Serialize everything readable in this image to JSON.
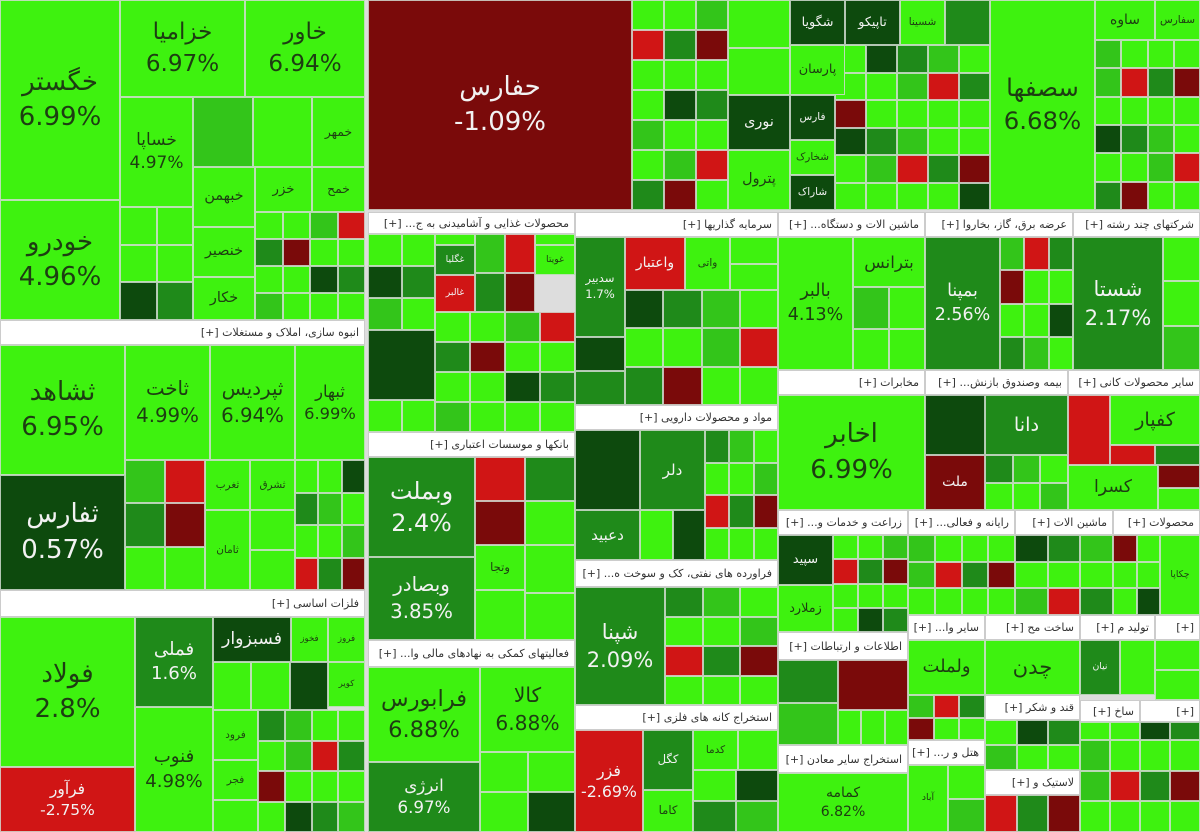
{
  "sectors": [
    {
      "tiles": [
        {
          "label": "خگستر",
          "change": "6.99%"
        },
        {
          "label": "خودرو",
          "change": "4.96%"
        },
        {
          "label": "خزامیا",
          "change": "6.97%"
        },
        {
          "label": "خاور",
          "change": "6.94%"
        },
        {
          "label": "خساپا",
          "change": "4.97%"
        },
        {
          "label": "خمهر"
        },
        {
          "label": "خبهمن"
        },
        {
          "label": "خزر"
        },
        {
          "label": "خمح"
        },
        {
          "label": "خنصیر"
        },
        {
          "label": "خکار"
        }
      ]
    },
    {
      "title": "انبوه سازی، املاک و مستغلات [+]",
      "tiles": [
        {
          "label": "ثشاهد",
          "change": "6.95%"
        },
        {
          "label": "ثفارس",
          "change": "0.57%"
        },
        {
          "label": "ثاخت",
          "change": "4.99%"
        },
        {
          "label": "ثپردیس",
          "change": "6.94%"
        },
        {
          "label": "ثبهار",
          "change": "6.99%"
        },
        {
          "label": "ثغرب"
        },
        {
          "label": "ثشرق"
        },
        {
          "label": "ثامان"
        }
      ]
    },
    {
      "title": "فلزات اساسی [+]",
      "tiles": [
        {
          "label": "فولاد",
          "change": "2.8%"
        },
        {
          "label": "فرآور",
          "change": "-2.75%"
        },
        {
          "label": "فملی",
          "change": "1.6%"
        },
        {
          "label": "فنوب",
          "change": "4.98%"
        },
        {
          "label": "فسبزوار"
        },
        {
          "label": "فخوز"
        },
        {
          "label": "فروز"
        },
        {
          "label": "کویر"
        },
        {
          "label": "فرود"
        },
        {
          "label": "فجر"
        }
      ]
    },
    {
      "tiles": [
        {
          "label": "حفارس",
          "change": "-1.09%"
        },
        {
          "label": "نوری"
        },
        {
          "label": "پترول"
        },
        {
          "label": "شگویا"
        },
        {
          "label": "تاپیکو"
        },
        {
          "label": "شسینا"
        },
        {
          "label": "پارسان"
        },
        {
          "label": "فارس"
        },
        {
          "label": "شخارک"
        },
        {
          "label": "شاراک"
        }
      ]
    },
    {
      "tiles": [
        {
          "label": "سصفها",
          "change": "6.68%"
        },
        {
          "label": "ساوه"
        },
        {
          "label": "سفارس"
        }
      ]
    },
    {
      "title": "محصولات غذایی و آشامیدنی به ج... [+]",
      "tiles": [
        {
          "label": "غویتا"
        },
        {
          "label": "غگلیا"
        },
        {
          "label": "غالبر"
        }
      ]
    },
    {
      "title": "سرمایه گذاریها [+]",
      "tiles": [
        {
          "label": "سدبیر",
          "change": "1.7%"
        },
        {
          "label": "واعتبار"
        },
        {
          "label": "واتی"
        }
      ]
    },
    {
      "title": "ماشین الات و دستگاه... [+]",
      "tiles": [
        {
          "label": "بالبر",
          "change": "4.13%"
        },
        {
          "label": "بترانس"
        }
      ]
    },
    {
      "title": "عرضه برق، گاز، بخاروا [+]",
      "tiles": [
        {
          "label": "بمپنا",
          "change": "2.56%"
        }
      ]
    },
    {
      "title": "شرکتهای چند رشته [+]",
      "tiles": [
        {
          "label": "شستا",
          "change": "2.17%"
        }
      ]
    },
    {
      "title": "بانکها و موسسات اعتباری [+]",
      "tiles": [
        {
          "label": "وبملت",
          "change": "2.4%"
        },
        {
          "label": "وبصادر",
          "change": "3.85%"
        },
        {
          "label": "وتجا"
        }
      ]
    },
    {
      "title": "مواد و محصولات دارویی [+]",
      "tiles": [
        {
          "label": "دلر"
        },
        {
          "label": "دعبید"
        }
      ]
    },
    {
      "title": "مخابرات [+]",
      "tiles": [
        {
          "label": "اخابر",
          "change": "6.99%"
        }
      ]
    },
    {
      "title": "بیمه وصندوق بازنش... [+]",
      "tiles": [
        {
          "label": "دانا"
        },
        {
          "label": "ملت"
        }
      ]
    },
    {
      "title": "سایر محصولات کانی [+]",
      "tiles": [
        {
          "label": "کفپار"
        },
        {
          "label": "کسرا"
        }
      ]
    },
    {
      "title": "فعالیتهای کمکی به نهادهای مالی وا... [+]",
      "tiles": [
        {
          "label": "فرابورس",
          "change": "6.88%"
        },
        {
          "label": "کالا",
          "change": "6.88%"
        },
        {
          "label": "انرژی",
          "change": "6.97%"
        }
      ]
    },
    {
      "title": "فراورده های نفتی، کک و سوخت ه... [+]",
      "tiles": [
        {
          "label": "شپنا",
          "change": "2.09%"
        }
      ]
    },
    {
      "title": "استخراج کانه های فلزی [+]",
      "tiles": [
        {
          "label": "فزر",
          "change": "-2.69%"
        },
        {
          "label": "کگل"
        },
        {
          "label": "کدما"
        },
        {
          "label": "کاما"
        }
      ]
    },
    {
      "title": "زراعت و خدمات و... [+]",
      "tiles": [
        {
          "label": "سپید"
        },
        {
          "label": "زملارد"
        }
      ]
    },
    {
      "title": "رایانه و فعالی... [+]",
      "tiles": []
    },
    {
      "title": "ماشین الات [+]",
      "tiles": []
    },
    {
      "title": "محصولات [+]",
      "tiles": [
        {
          "label": "چکاپا"
        }
      ]
    },
    {
      "title": "اطلاعات و ارتباطات [+]",
      "tiles": []
    },
    {
      "title": "استخراج سایر معادن [+]",
      "tiles": [
        {
          "label": "کمامه",
          "change": "6.82%"
        }
      ]
    },
    {
      "title": "سایر وا... [+]",
      "tiles": [
        {
          "label": "ولملت"
        }
      ]
    },
    {
      "title": "ساخت مح [+]",
      "tiles": [
        {
          "label": "چدن"
        }
      ]
    },
    {
      "title": "تولید م [+]",
      "tiles": [
        {
          "label": "نیان"
        }
      ]
    },
    {
      "title": "قند و شکر [+]",
      "tiles": []
    },
    {
      "title": "هتل و ر... [+]",
      "tiles": [
        {
          "label": "آباد"
        }
      ]
    },
    {
      "title": "لاستیک و [+]",
      "tiles": []
    },
    {
      "title": "[+]",
      "tiles": []
    },
    {
      "title": "ساخ [+]",
      "tiles": []
    },
    {
      "title": "[+]",
      "tiles": []
    }
  ]
}
